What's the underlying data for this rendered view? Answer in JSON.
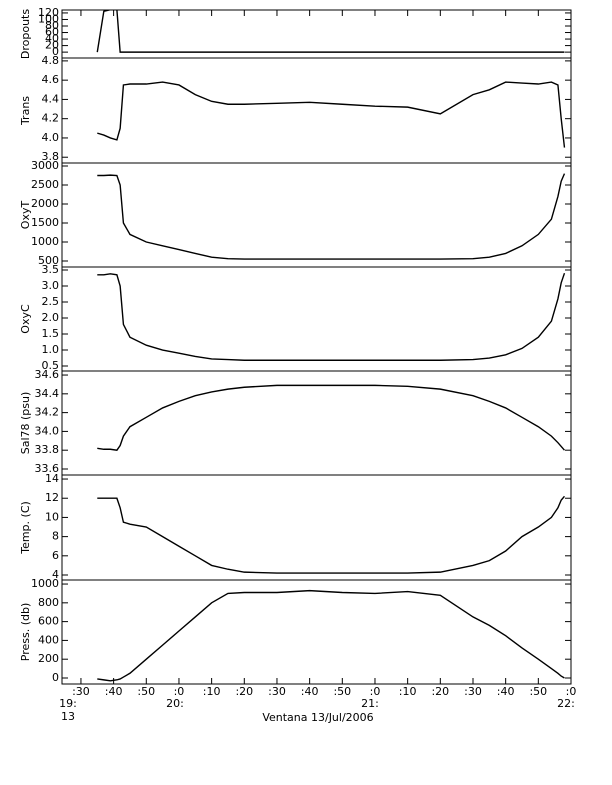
{
  "chart_data": [
    {
      "type": "line",
      "ylabel": "Dropouts",
      "color": "#000000",
      "x": [
        35,
        37,
        39,
        41,
        42,
        43,
        45,
        50,
        55,
        60,
        65,
        70,
        75,
        80,
        90,
        100,
        110,
        120,
        130,
        140,
        150,
        155,
        160,
        165,
        170,
        174,
        176,
        177,
        178
      ],
      "values": [
        0,
        125,
        130,
        130,
        0,
        0,
        0,
        0,
        0,
        0,
        0,
        0,
        0,
        0,
        0,
        0,
        0,
        0,
        0,
        0,
        0,
        0,
        0,
        0,
        0,
        0,
        0,
        0,
        0
      ],
      "xlim": [
        24.2,
        180
      ],
      "ylim": [
        -18,
        129
      ],
      "yticks": [
        0,
        20,
        40,
        60,
        80,
        100,
        120
      ]
    },
    {
      "type": "line",
      "ylabel": "Trans",
      "color": "#000000",
      "x": [
        35,
        37,
        39,
        41,
        42,
        43,
        45,
        50,
        55,
        60,
        65,
        70,
        75,
        80,
        90,
        100,
        110,
        120,
        130,
        140,
        150,
        155,
        160,
        165,
        170,
        174,
        176,
        177,
        178
      ],
      "values": [
        4.05,
        4.03,
        4.0,
        3.98,
        4.1,
        4.55,
        4.56,
        4.56,
        4.58,
        4.55,
        4.45,
        4.38,
        4.35,
        4.35,
        4.36,
        4.37,
        4.35,
        4.33,
        4.32,
        4.25,
        4.45,
        4.5,
        4.58,
        4.57,
        4.56,
        4.58,
        4.55,
        4.2,
        3.9
      ],
      "xlim": [
        24.2,
        180
      ],
      "ylim": [
        3.74,
        4.83
      ],
      "yticks": [
        3.8,
        {
          "value": 4,
          "label": "4.0"
        },
        4.2,
        4.4,
        4.6,
        4.8
      ]
    },
    {
      "type": "line",
      "ylabel": "OxyT",
      "color": "#000000",
      "x": [
        35,
        37,
        39,
        41,
        42,
        43,
        45,
        50,
        55,
        60,
        65,
        70,
        75,
        80,
        90,
        100,
        110,
        120,
        130,
        140,
        150,
        155,
        160,
        165,
        170,
        174,
        176,
        177,
        178
      ],
      "values": [
        2750,
        2750,
        2760,
        2750,
        2500,
        1500,
        1200,
        1000,
        900,
        800,
        700,
        600,
        560,
        550,
        550,
        550,
        550,
        550,
        550,
        550,
        560,
        600,
        700,
        900,
        1200,
        1600,
        2200,
        2600,
        2800
      ],
      "xlim": [
        24.2,
        180
      ],
      "ylim": [
        342,
        3079
      ],
      "yticks": [
        500,
        1000,
        1500,
        2000,
        2500,
        3000
      ]
    },
    {
      "type": "line",
      "ylabel": "OxyC",
      "color": "#000000",
      "x": [
        35,
        37,
        39,
        41,
        42,
        43,
        45,
        50,
        55,
        60,
        65,
        70,
        75,
        80,
        90,
        100,
        110,
        120,
        130,
        140,
        150,
        155,
        160,
        165,
        170,
        174,
        176,
        177,
        178
      ],
      "values": [
        3.35,
        3.35,
        3.38,
        3.35,
        3.0,
        1.8,
        1.4,
        1.15,
        1.0,
        0.9,
        0.8,
        0.72,
        0.7,
        0.68,
        0.68,
        0.68,
        0.68,
        0.68,
        0.68,
        0.68,
        0.7,
        0.75,
        0.85,
        1.05,
        1.4,
        1.9,
        2.6,
        3.1,
        3.4
      ],
      "xlim": [
        24.2,
        180
      ],
      "ylim": [
        0.344,
        3.594
      ],
      "yticks": [
        0.5,
        {
          "value": 1,
          "label": "1.0"
        },
        1.5,
        {
          "value": 2,
          "label": "2.0"
        },
        2.5,
        {
          "value": 3,
          "label": "3.0"
        },
        3.5
      ]
    },
    {
      "type": "line",
      "ylabel": "Sal78 (psu)",
      "color": "#000000",
      "x": [
        35,
        37,
        39,
        41,
        42,
        43,
        45,
        50,
        55,
        60,
        65,
        70,
        75,
        80,
        90,
        100,
        110,
        120,
        130,
        140,
        150,
        155,
        160,
        165,
        170,
        174,
        176,
        177,
        178
      ],
      "values": [
        33.82,
        33.81,
        33.81,
        33.8,
        33.85,
        33.95,
        34.05,
        34.15,
        34.25,
        34.32,
        34.38,
        34.42,
        34.45,
        34.47,
        34.49,
        34.49,
        34.49,
        34.49,
        34.48,
        34.45,
        34.38,
        34.32,
        34.25,
        34.15,
        34.05,
        33.95,
        33.88,
        33.84,
        33.8
      ],
      "xlim": [
        24.2,
        180
      ],
      "ylim": [
        33.536,
        34.643
      ],
      "yticks": [
        33.6,
        33.8,
        {
          "value": 34,
          "label": "34.0"
        },
        34.2,
        34.4,
        34.6
      ]
    },
    {
      "type": "line",
      "ylabel": "Temp. (C)",
      "color": "#000000",
      "x": [
        35,
        37,
        39,
        41,
        42,
        43,
        45,
        50,
        55,
        60,
        65,
        70,
        75,
        80,
        90,
        100,
        110,
        120,
        130,
        140,
        150,
        155,
        160,
        165,
        170,
        174,
        176,
        177,
        178
      ],
      "values": [
        12,
        12,
        12,
        12,
        11,
        9.5,
        9.3,
        9,
        8,
        7,
        6,
        5,
        4.6,
        4.3,
        4.2,
        4.2,
        4.2,
        4.2,
        4.2,
        4.3,
        5,
        5.5,
        6.5,
        8,
        9,
        10,
        11,
        11.8,
        12.2
      ],
      "xlim": [
        24.2,
        180
      ],
      "ylim": [
        3.48,
        14.42
      ],
      "yticks": [
        4,
        6,
        8,
        10,
        12,
        14
      ]
    },
    {
      "type": "line",
      "ylabel": "Press. (db)",
      "color": "#000000",
      "x": [
        35,
        37,
        39,
        41,
        42,
        43,
        45,
        50,
        55,
        60,
        65,
        70,
        75,
        80,
        90,
        100,
        110,
        120,
        130,
        140,
        150,
        155,
        160,
        165,
        170,
        174,
        176,
        177,
        178
      ],
      "values": [
        -10,
        -20,
        -30,
        -20,
        -10,
        10,
        50,
        200,
        350,
        500,
        650,
        800,
        900,
        910,
        910,
        930,
        910,
        900,
        920,
        880,
        650,
        560,
        450,
        320,
        200,
        100,
        50,
        20,
        0
      ],
      "xlim": [
        24.2,
        180
      ],
      "ylim": [
        -64,
        1043
      ],
      "yticks": [
        0,
        200,
        400,
        600,
        800,
        1000
      ],
      "xticks": [
        {
          "value": 30,
          "label": ":30"
        },
        {
          "value": 40,
          "label": ":40"
        },
        {
          "value": 50,
          "label": ":50"
        },
        {
          "value": 60,
          "label": ":0"
        },
        {
          "value": 70,
          "label": ":10"
        },
        {
          "value": 80,
          "label": ":20"
        },
        {
          "value": 90,
          "label": ":30"
        },
        {
          "value": 100,
          "label": ":40"
        },
        {
          "value": 110,
          "label": ":50"
        },
        {
          "value": 120,
          "label": ":0"
        },
        {
          "value": 130,
          "label": ":10"
        },
        {
          "value": 140,
          "label": ":20"
        },
        {
          "value": 150,
          "label": ":30"
        },
        {
          "value": 160,
          "label": ":40"
        },
        {
          "value": 170,
          "label": ":50"
        },
        {
          "value": 180,
          "label": ":0"
        }
      ],
      "hour_labels": [
        "19:",
        "20:",
        "21:",
        "22:"
      ],
      "day_label": "13",
      "xlabel": "Ventana 13/Jul/2006"
    }
  ]
}
